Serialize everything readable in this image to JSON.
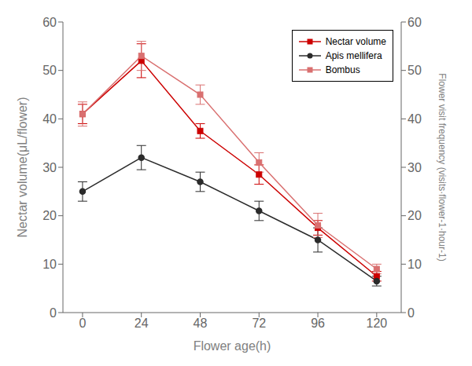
{
  "chart_data": {
    "type": "line",
    "xlabel": "Flower age(h)",
    "ylabel": "Nectar volume(μL/flower)",
    "y2label": "Flower visit frequency (visits·flower-1·hour-1)",
    "x": [
      0,
      24,
      48,
      72,
      96,
      120
    ],
    "xlim": [
      -8,
      130
    ],
    "xticks": [
      0,
      24,
      48,
      72,
      96,
      120
    ],
    "ylim": [
      0,
      60
    ],
    "yticks": [
      0,
      10,
      20,
      30,
      40,
      50,
      60
    ],
    "y2lim": [
      0,
      60
    ],
    "y2ticks": [
      0,
      10,
      20,
      30,
      40,
      50,
      60
    ],
    "grid": false,
    "legend": "upper right",
    "series": [
      {
        "name": "Nectar volume",
        "color": "#cc0000",
        "marker": "square",
        "values": [
          41.0,
          52.0,
          37.5,
          28.5,
          17.5,
          7.5
        ],
        "error": [
          2.0,
          3.5,
          1.5,
          2.0,
          1.5,
          1.0
        ]
      },
      {
        "name": "Apis mellifera",
        "color": "#2b2b2b",
        "marker": "circle",
        "values": [
          25.0,
          32.0,
          27.0,
          21.0,
          15.0,
          6.5
        ],
        "error": [
          2.0,
          2.5,
          2.0,
          2.0,
          2.5,
          1.0
        ]
      },
      {
        "name": "Bombus",
        "color": "#d97070",
        "marker": "square",
        "axis": "y2",
        "values": [
          41.0,
          53.0,
          45.0,
          31.0,
          18.0,
          9.0
        ],
        "error": [
          2.5,
          3.0,
          2.0,
          2.0,
          2.5,
          1.0
        ]
      }
    ]
  }
}
